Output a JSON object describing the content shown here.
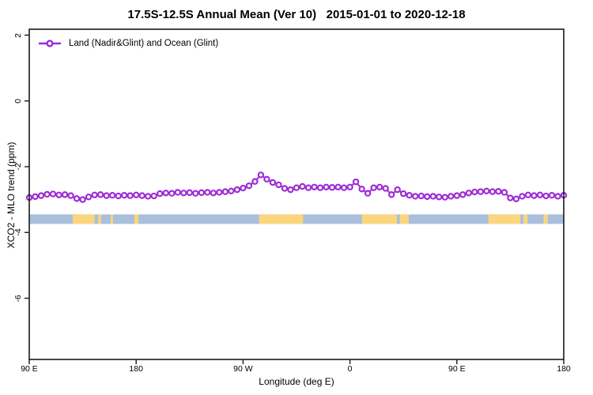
{
  "title": "17.5S-12.5S Annual Mean (Ver 10)   2015-01-01 to 2020-12-18",
  "legend": {
    "label": "Land (Nadir&Glint) and Ocean (Glint)"
  },
  "axes": {
    "x_label": "Longitude (deg E)",
    "y_label": "XCO2 - MLO trend (ppm)"
  },
  "colors": {
    "series": "#9D2BD6",
    "ocean_band": "#A9BFDB",
    "land_band": "#FBD67E",
    "plot_border": "#1a1a1a"
  },
  "chart_data": {
    "type": "line",
    "title": "17.5S-12.5S Annual Mean (Ver 10)   2015-01-01 to 2020-12-18",
    "xlabel": "Longitude (deg E)",
    "ylabel": "XCO2 - MLO trend (ppm)",
    "x_ticks": [
      {
        "lon": 90,
        "label": "90 E"
      },
      {
        "lon": 180,
        "label": "180"
      },
      {
        "lon": 270,
        "label": "90 W"
      },
      {
        "lon": 360,
        "label": "0"
      },
      {
        "lon": 450,
        "label": "90 E"
      },
      {
        "lon": 540,
        "label": "180"
      }
    ],
    "y_ticks": [
      {
        "value": 2,
        "label": "2"
      },
      {
        "value": 0,
        "label": "0"
      },
      {
        "value": -2,
        "label": "-2"
      },
      {
        "value": -4,
        "label": "-4"
      },
      {
        "value": -6,
        "label": "-6"
      }
    ],
    "x_range": [
      90,
      540
    ],
    "y_range": [
      -7.9,
      2.2
    ],
    "grid": false,
    "legend_position": "top-left-inside",
    "series": [
      {
        "name": "Land (Nadir&Glint) and Ocean (Glint)",
        "marker": "open-circle",
        "x": [
          90,
          95,
          100,
          105,
          110,
          115,
          120,
          125,
          130,
          135,
          140,
          145,
          150,
          155,
          160,
          165,
          170,
          175,
          180,
          185,
          190,
          195,
          200,
          205,
          210,
          215,
          220,
          225,
          230,
          235,
          240,
          245,
          250,
          255,
          260,
          265,
          270,
          275,
          280,
          285,
          290,
          295,
          300,
          305,
          310,
          315,
          320,
          325,
          330,
          335,
          340,
          345,
          350,
          355,
          360,
          365,
          370,
          375,
          380,
          385,
          390,
          395,
          400,
          405,
          410,
          415,
          420,
          425,
          430,
          435,
          440,
          445,
          450,
          455,
          460,
          465,
          470,
          475,
          480,
          485,
          490,
          495,
          500,
          505,
          510,
          515,
          520,
          525,
          530,
          535,
          540
        ],
        "y": [
          -2.94,
          -2.91,
          -2.88,
          -2.84,
          -2.83,
          -2.86,
          -2.85,
          -2.88,
          -2.97,
          -3.0,
          -2.92,
          -2.86,
          -2.85,
          -2.88,
          -2.87,
          -2.89,
          -2.87,
          -2.88,
          -2.86,
          -2.88,
          -2.9,
          -2.89,
          -2.82,
          -2.8,
          -2.81,
          -2.78,
          -2.8,
          -2.79,
          -2.81,
          -2.79,
          -2.78,
          -2.8,
          -2.78,
          -2.76,
          -2.74,
          -2.7,
          -2.65,
          -2.58,
          -2.45,
          -2.25,
          -2.38,
          -2.48,
          -2.55,
          -2.66,
          -2.7,
          -2.64,
          -2.6,
          -2.64,
          -2.62,
          -2.64,
          -2.62,
          -2.63,
          -2.62,
          -2.64,
          -2.62,
          -2.46,
          -2.68,
          -2.81,
          -2.64,
          -2.62,
          -2.66,
          -2.85,
          -2.7,
          -2.82,
          -2.87,
          -2.9,
          -2.89,
          -2.91,
          -2.9,
          -2.92,
          -2.93,
          -2.9,
          -2.88,
          -2.85,
          -2.8,
          -2.77,
          -2.76,
          -2.74,
          -2.76,
          -2.75,
          -2.78,
          -2.95,
          -2.98,
          -2.9,
          -2.86,
          -2.88,
          -2.86,
          -2.89,
          -2.87,
          -2.9,
          -2.87
        ]
      }
    ],
    "surface_band": {
      "description": "ocean (blue) vs land (yellow) coverage along the latitude band",
      "y_top": -3.45,
      "y_bottom": -3.74,
      "land_segments_lon": [
        [
          126.5,
          145.0
        ],
        [
          148.0,
          150.5
        ],
        [
          158.5,
          160.5
        ],
        [
          178.5,
          182.0
        ],
        [
          283.5,
          320.5
        ],
        [
          370.0,
          399.5
        ],
        [
          402.0,
          409.5
        ],
        [
          476.5,
          503.5
        ],
        [
          506.0,
          509.5
        ],
        [
          523.0,
          526.5
        ]
      ]
    }
  }
}
